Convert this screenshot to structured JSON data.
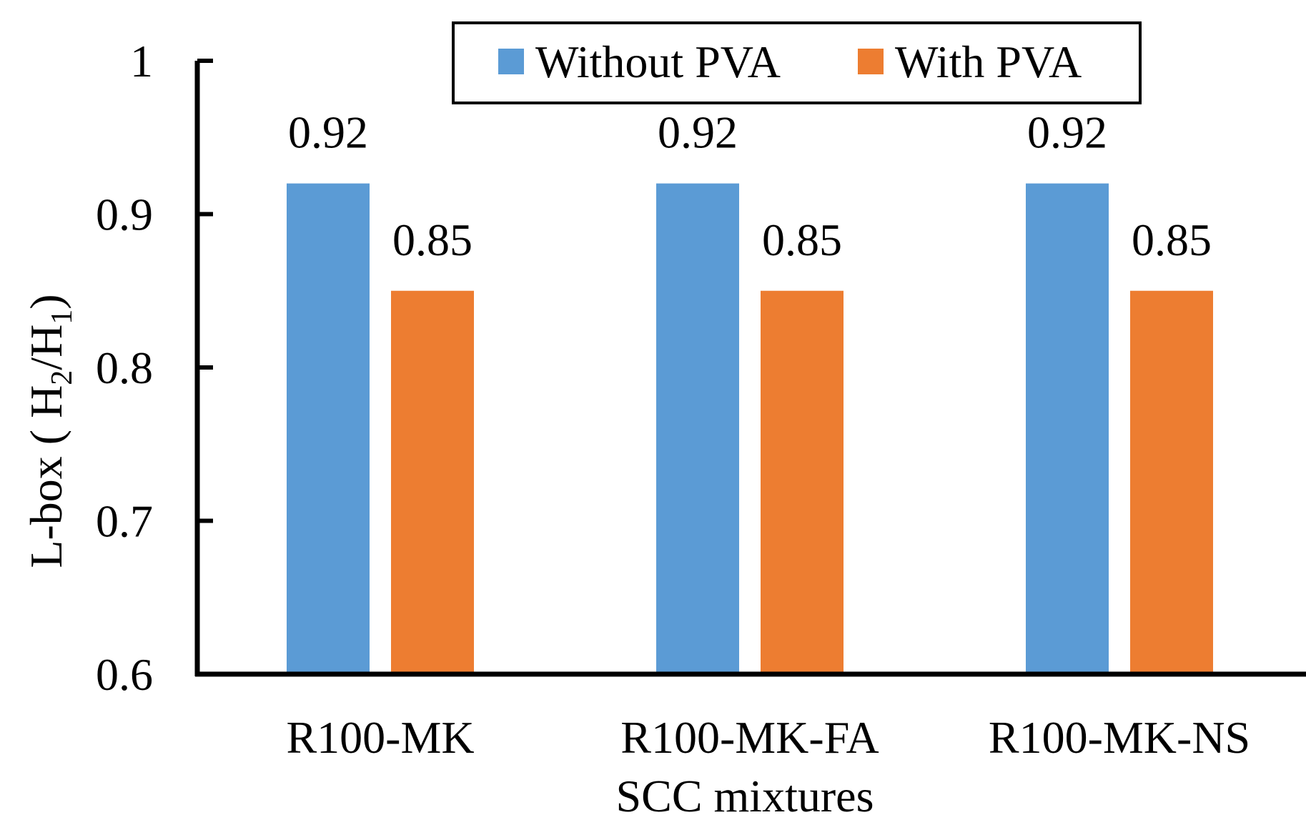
{
  "chart_data": {
    "type": "bar",
    "title": "",
    "xlabel": "SCC mixtures",
    "ylabel": {
      "prefix": "L-box ( H",
      "sub1": "2",
      "mid": "/H",
      "sub2": "1",
      "suffix": ")"
    },
    "categories": [
      "R100-MK",
      "R100-MK-FA",
      "R100-MK-NS"
    ],
    "series": [
      {
        "name": "Without PVA",
        "color": "#5B9BD5",
        "values": [
          0.92,
          0.92,
          0.92
        ],
        "labels": [
          "0.92",
          "0.92",
          "0.92"
        ]
      },
      {
        "name": "With PVA",
        "color": "#ED7D31",
        "values": [
          0.85,
          0.85,
          0.85
        ],
        "labels": [
          "0.85",
          "0.85",
          "0.85"
        ]
      }
    ],
    "ylim": [
      0.6,
      1.0
    ],
    "yticks": [
      0.6,
      0.7,
      0.8,
      0.9,
      1.0
    ],
    "ytick_labels": [
      "0.6",
      "0.7",
      "0.8",
      "0.9",
      "1"
    ],
    "grid": false,
    "legend_position": "top-right"
  }
}
